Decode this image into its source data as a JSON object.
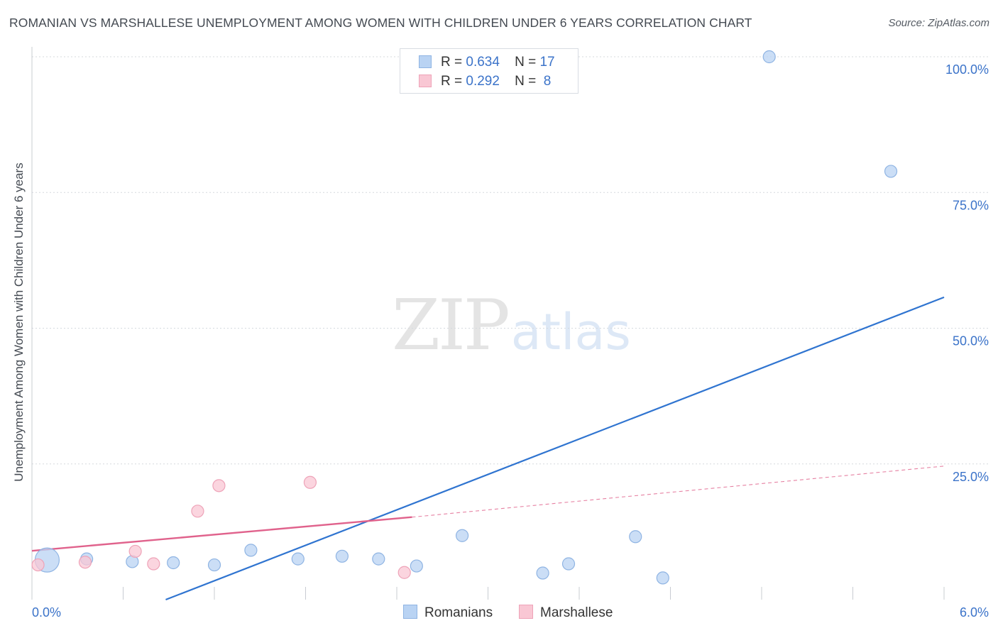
{
  "header": {
    "title": "ROMANIAN VS MARSHALLESE UNEMPLOYMENT AMONG WOMEN WITH CHILDREN UNDER 6 YEARS CORRELATION CHART",
    "source": "Source: ZipAtlas.com"
  },
  "watermark": {
    "zip": "ZIP",
    "atlas": "atlas"
  },
  "legend": {
    "rows": [
      {
        "r_label": "R =",
        "r_value": "0.634",
        "n_label": "N =",
        "n_value": "17"
      },
      {
        "r_label": "R =",
        "r_value": "0.292",
        "n_label": "N =",
        "n_value": "8"
      }
    ]
  },
  "colors": {
    "romanians_fill": "#b9d3f3",
    "romanians_stroke": "#8fb4e3",
    "romanians_line": "#2f74d0",
    "marshallese_fill": "#f9c7d4",
    "marshallese_stroke": "#eea3b8",
    "marshallese_line": "#e0628c",
    "axis_text": "#3b73c9",
    "grid": "#d5d9de"
  },
  "chart_data": {
    "type": "scatter",
    "title": "ROMANIAN VS MARSHALLESE UNEMPLOYMENT AMONG WOMEN WITH CHILDREN UNDER 6 YEARS CORRELATION CHART",
    "xlabel": "",
    "ylabel": "Unemployment Among Women with Children Under 6 years",
    "xlim": [
      0,
      6
    ],
    "ylim": [
      0,
      100
    ],
    "x_tick_labels": [
      {
        "value": 0,
        "label": "0.0%"
      },
      {
        "value": 6,
        "label": "6.0%"
      }
    ],
    "y_tick_labels": [
      {
        "value": 25,
        "label": "25.0%"
      },
      {
        "value": 50,
        "label": "50.0%"
      },
      {
        "value": 75,
        "label": "75.0%"
      },
      {
        "value": 100,
        "label": "100.0%"
      }
    ],
    "grid": true,
    "legend_position": "top-center",
    "series": [
      {
        "name": "Romanians",
        "r": 0.634,
        "n": 17,
        "points": [
          {
            "x": 0.1,
            "y": 7.3,
            "size": "large"
          },
          {
            "x": 0.36,
            "y": 7.5
          },
          {
            "x": 0.66,
            "y": 7.0
          },
          {
            "x": 0.93,
            "y": 6.8
          },
          {
            "x": 1.2,
            "y": 6.4
          },
          {
            "x": 1.44,
            "y": 9.1
          },
          {
            "x": 1.75,
            "y": 7.5
          },
          {
            "x": 2.04,
            "y": 8.0
          },
          {
            "x": 2.28,
            "y": 7.5
          },
          {
            "x": 2.53,
            "y": 6.2
          },
          {
            "x": 2.83,
            "y": 11.8
          },
          {
            "x": 3.36,
            "y": 4.9
          },
          {
            "x": 3.53,
            "y": 6.6
          },
          {
            "x": 3.97,
            "y": 11.6
          },
          {
            "x": 4.15,
            "y": 4.0
          },
          {
            "x": 4.85,
            "y": 100.0
          },
          {
            "x": 5.65,
            "y": 78.9
          }
        ],
        "trendline": {
          "x0": 0.88,
          "y0": 0,
          "x1": 6.0,
          "y1": 55.7
        }
      },
      {
        "name": "Marshallese",
        "r": 0.292,
        "n": 8,
        "points": [
          {
            "x": 0.04,
            "y": 6.4
          },
          {
            "x": 0.35,
            "y": 6.9
          },
          {
            "x": 0.68,
            "y": 8.9
          },
          {
            "x": 0.8,
            "y": 6.6
          },
          {
            "x": 1.09,
            "y": 16.3
          },
          {
            "x": 1.23,
            "y": 21.0
          },
          {
            "x": 1.83,
            "y": 21.6
          },
          {
            "x": 2.45,
            "y": 5.0
          }
        ],
        "trendline": {
          "x0": 0.0,
          "y0": 9.0,
          "x1": 2.5,
          "y1": 15.2,
          "x_ext": 6.0,
          "y_ext": 24.6
        }
      }
    ]
  }
}
